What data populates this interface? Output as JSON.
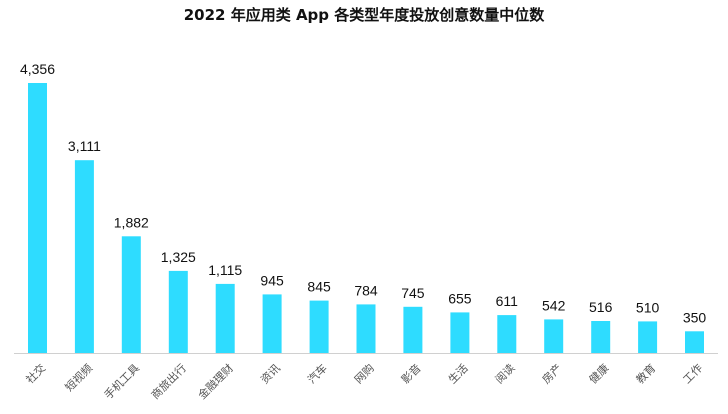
{
  "chart_data": {
    "type": "bar",
    "title": "2022 年应用类 App 各类型年度投放创意数量中位数",
    "categories": [
      "社交",
      "短视频",
      "手机工具",
      "商旅出行",
      "金融理财",
      "资讯",
      "汽车",
      "网购",
      "影音",
      "生活",
      "阅读",
      "房产",
      "健康",
      "教育",
      "工作"
    ],
    "values": [
      4356,
      3111,
      1882,
      1325,
      1115,
      945,
      845,
      784,
      745,
      655,
      611,
      542,
      516,
      510,
      350
    ],
    "value_labels": [
      "4,356",
      "3,111",
      "1,882",
      "1,325",
      "1,115",
      "945",
      "845",
      "784",
      "745",
      "655",
      "611",
      "542",
      "516",
      "510",
      "350"
    ],
    "xlabel": "",
    "ylabel": "",
    "ylim": [
      0,
      4356
    ],
    "grid": false,
    "legend": "none",
    "bar_color": "#2edcff"
  }
}
